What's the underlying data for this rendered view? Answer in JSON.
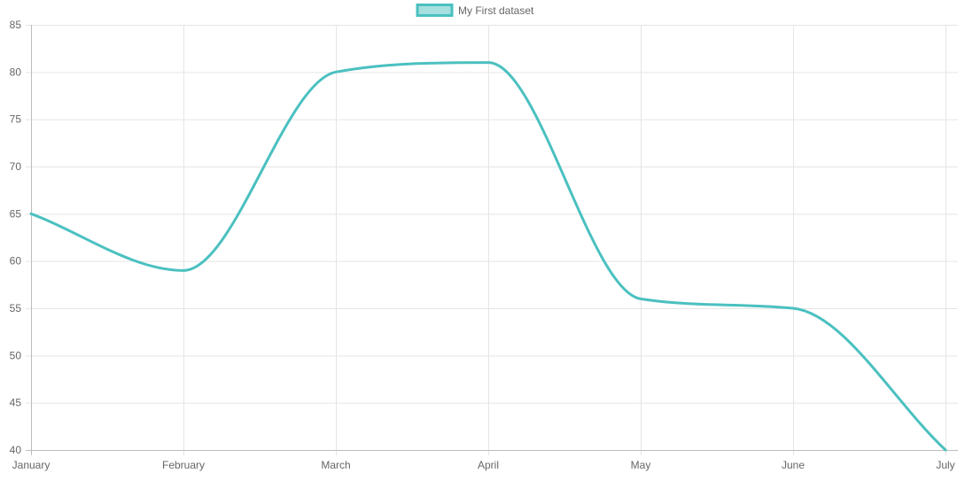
{
  "chart_data": {
    "type": "line",
    "categories": [
      "January",
      "February",
      "March",
      "April",
      "May",
      "June",
      "July"
    ],
    "series": [
      {
        "name": "My First dataset",
        "values": [
          65,
          59,
          80,
          81,
          56,
          55,
          40
        ],
        "color": "#4bc0c0",
        "fill_color": "#a5dfdf"
      }
    ],
    "ylim": [
      40,
      85
    ],
    "yticks": [
      40,
      45,
      50,
      55,
      60,
      65,
      70,
      75,
      80,
      85
    ],
    "grid": true,
    "legend_position": "top",
    "smooth": true
  }
}
